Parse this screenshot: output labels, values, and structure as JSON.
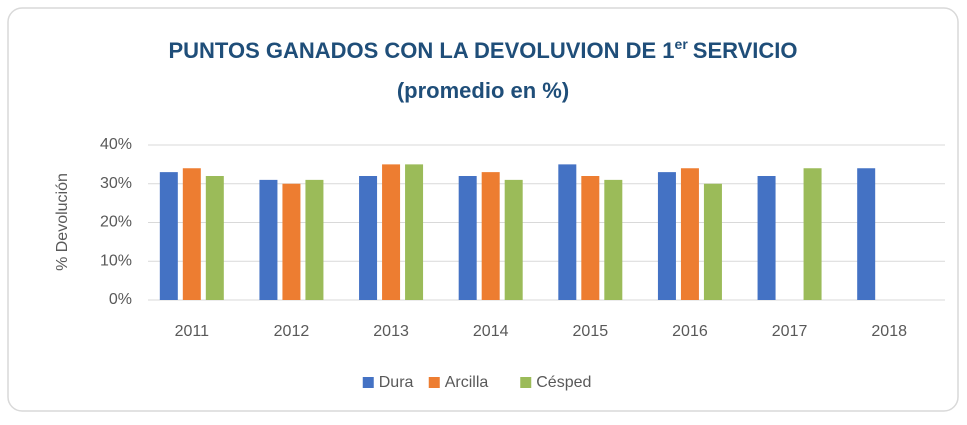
{
  "chart_data": {
    "type": "bar",
    "title": "PUNTOS GANADOS CON LA DEVOLUVION DE 1",
    "title_superscript": "er",
    "title_end": "SERVICIO",
    "subtitle": "(promedio en %)",
    "y_label": "% Devolución",
    "categories": [
      "2011",
      "2012",
      "2013",
      "2014",
      "2015",
      "2016",
      "2017",
      "2018"
    ],
    "series": [
      {
        "name": "Dura",
        "color": "#4472c4",
        "values": [
          33,
          31,
          32,
          32,
          35,
          33,
          32,
          34
        ]
      },
      {
        "name": "Arcilla",
        "color": "#ed7d31",
        "values": [
          34,
          30,
          35,
          33,
          32,
          34,
          null,
          null
        ]
      },
      {
        "name": "Césped",
        "color": "#9bbb59",
        "values": [
          32,
          31,
          35,
          31,
          31,
          30,
          34,
          null
        ]
      }
    ],
    "ylim": [
      0,
      40
    ],
    "yticks": [
      {
        "value": 0,
        "label": "0%"
      },
      {
        "value": 10,
        "label": "10%"
      },
      {
        "value": 20,
        "label": "20%"
      },
      {
        "value": 30,
        "label": "30%"
      },
      {
        "value": 40,
        "label": "40%"
      }
    ],
    "grid": true,
    "legend": "bottom"
  }
}
